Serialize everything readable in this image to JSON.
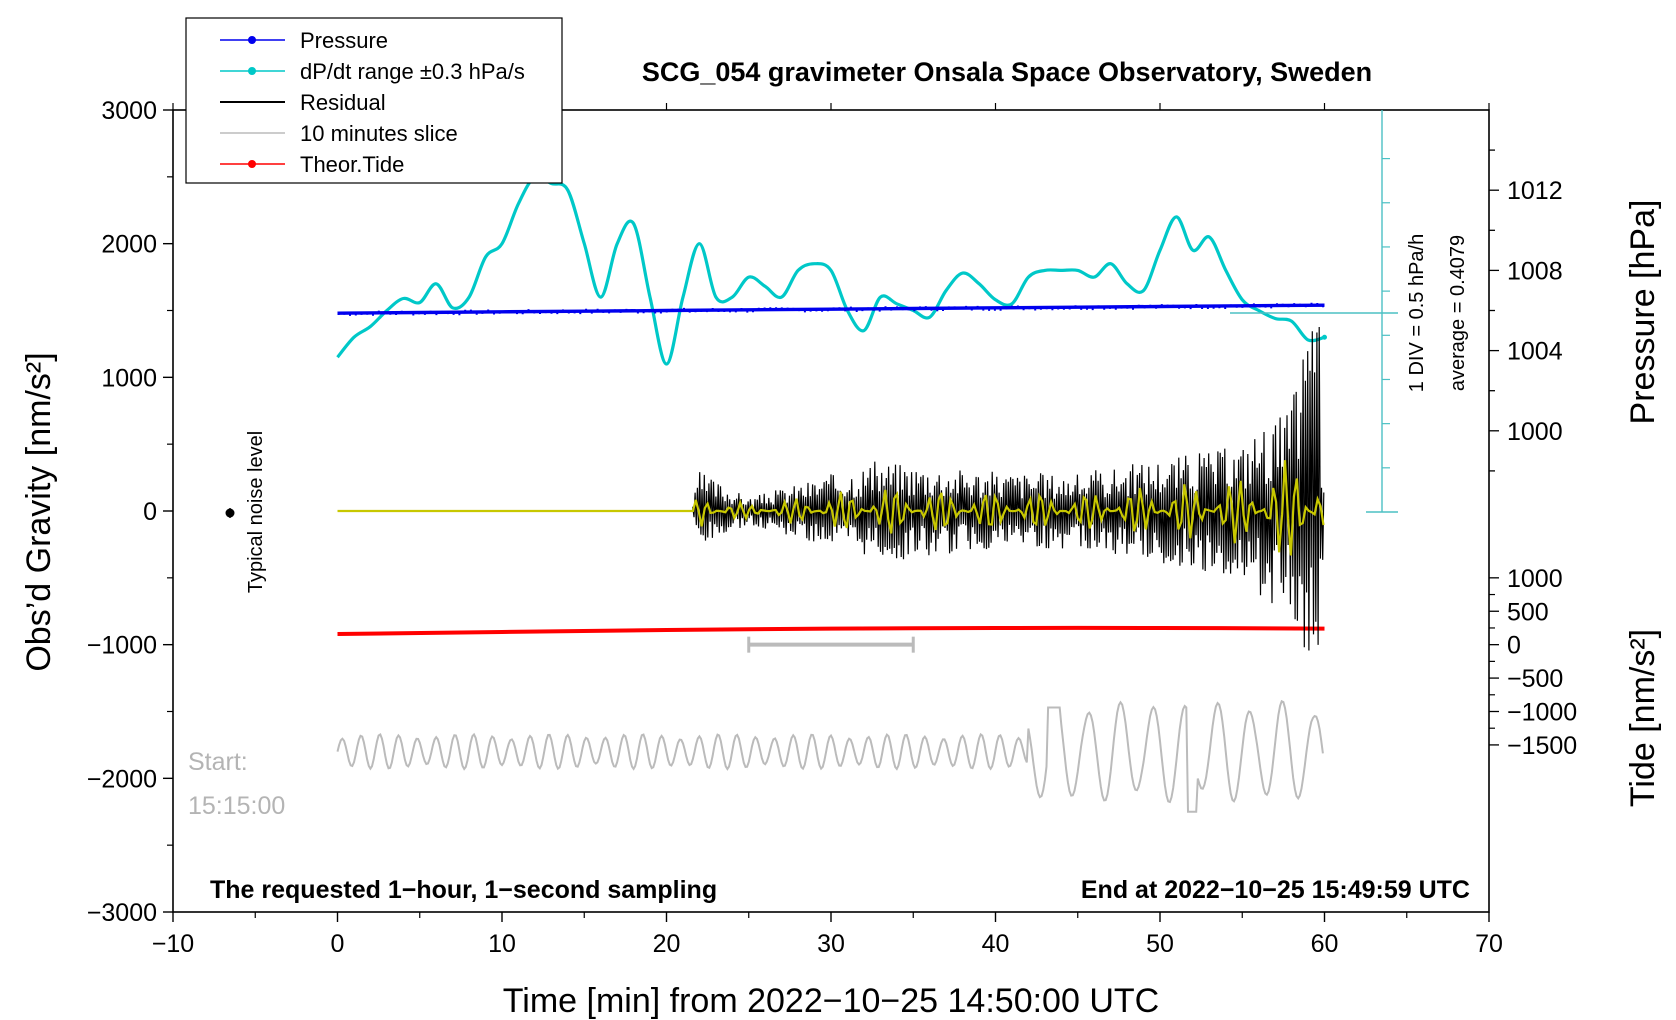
{
  "chart_data": {
    "type": "line",
    "title": "SCG_054 gravimeter Onsala Space Observatory, Sweden",
    "xlabel": "Time [min] from 2022−10−25 14:50:00 UTC",
    "ylabel_left": "Obs’d Gravity [nm/s²]",
    "ylabel_right_pressure": "Pressure [hPa]",
    "ylabel_right_tide": "Tide [nm/s²]",
    "xlim": [
      -10,
      70
    ],
    "ylim": [
      -3000,
      3000
    ],
    "x_ticks": [
      "−10",
      "0",
      "10",
      "20",
      "30",
      "40",
      "50",
      "60",
      "70"
    ],
    "x_tick_values": [
      -10,
      0,
      10,
      20,
      30,
      40,
      50,
      60,
      70
    ],
    "y_ticks": [
      "3000",
      "2000",
      "1000",
      "0",
      "−1000",
      "−2000",
      "−3000"
    ],
    "y_tick_values": [
      3000,
      2000,
      1000,
      0,
      -1000,
      -2000,
      -3000
    ],
    "pressure_axis": {
      "ticks": [
        "1012",
        "1008",
        "1004",
        "1000"
      ],
      "tick_values": [
        1012,
        1008,
        1004,
        1000
      ],
      "gravity_at_1012": 2400,
      "gravity_per_hPa": 150
    },
    "tide_axis": {
      "ticks": [
        "1000",
        "500",
        "0",
        "−500",
        "−1000",
        "−1500"
      ],
      "tick_values": [
        1000,
        500,
        0,
        -500,
        -1000,
        -1500
      ],
      "gravity_at_1000": -500,
      "gravity_per_unit": 0.5
    },
    "legend": [
      {
        "label": "Pressure",
        "color": "#0000ee",
        "marker": true
      },
      {
        "label": "dP/dt range ±0.3 hPa/s",
        "color": "#00c8c8",
        "marker": true
      },
      {
        "label": "Residual",
        "color": "#000000",
        "marker": false
      },
      {
        "label": "10 minutes slice",
        "color": "#bbbbbb",
        "marker": false
      },
      {
        "label": "Theor.Tide",
        "color": "#ff0000",
        "marker": true
      }
    ],
    "annotations": {
      "div_label": "1 DIV = 0.5 hPa/h",
      "average_label": "average = 0.4079",
      "noise_label": "Typical noise level",
      "start_label": "Start:",
      "start_time": "15:15:00",
      "bottom_left": "The requested 1−hour, 1−second sampling",
      "bottom_right": "End at 2022−10−25 15:49:59 UTC"
    },
    "slice_range_min": [
      25,
      35
    ],
    "series": [
      {
        "name": "Pressure",
        "color": "#0000ee",
        "axis": "gravity",
        "x": [
          0,
          5,
          10,
          15,
          20,
          25,
          30,
          35,
          40,
          45,
          50,
          55,
          60
        ],
        "values": [
          1480,
          1485,
          1490,
          1495,
          1500,
          1505,
          1510,
          1515,
          1520,
          1525,
          1530,
          1535,
          1540
        ]
      },
      {
        "name": "dP/dt",
        "color": "#00c8c8",
        "axis": "gravity",
        "x": [
          0,
          1,
          2,
          3,
          4,
          5,
          6,
          7,
          8,
          9,
          10,
          11,
          12,
          13,
          14,
          15,
          16,
          17,
          18,
          19,
          20,
          21,
          22,
          23,
          24,
          25,
          26,
          27,
          28,
          29,
          30,
          31,
          32,
          33,
          34,
          35,
          36,
          37,
          38,
          39,
          40,
          41,
          42,
          43,
          44,
          45,
          46,
          47,
          48,
          49,
          50,
          51,
          52,
          53,
          54,
          55,
          56,
          57,
          58,
          59,
          60
        ],
        "values": [
          1150,
          1300,
          1380,
          1500,
          1590,
          1560,
          1700,
          1520,
          1600,
          1900,
          2000,
          2300,
          2500,
          2450,
          2400,
          2000,
          1600,
          2000,
          2150,
          1600,
          1100,
          1600,
          2000,
          1600,
          1600,
          1750,
          1680,
          1600,
          1800,
          1850,
          1800,
          1500,
          1350,
          1600,
          1550,
          1500,
          1450,
          1650,
          1780,
          1700,
          1580,
          1550,
          1750,
          1800,
          1800,
          1800,
          1750,
          1850,
          1700,
          1650,
          1950,
          2200,
          1950,
          2050,
          1800,
          1580,
          1500,
          1440,
          1420,
          1280,
          1300
        ]
      },
      {
        "name": "Theor.Tide",
        "color": "#ff0000",
        "axis": "gravity",
        "x": [
          0,
          10,
          20,
          30,
          40,
          50,
          60
        ],
        "values": [
          -920,
          -905,
          -890,
          -880,
          -875,
          -875,
          -880
        ]
      },
      {
        "name": "Residual",
        "color": "#000000",
        "axis": "gravity",
        "x": [
          0,
          21.5,
          22,
          25,
          32,
          33,
          40,
          45,
          50,
          55,
          56,
          57,
          58,
          59,
          60
        ],
        "values": [
          0,
          0,
          300,
          100,
          350,
          380,
          300,
          280,
          400,
          500,
          650,
          700,
          800,
          1520,
          280
        ],
        "note": "values are approximate oscillation envelope (peak amplitude); max negative -1270 near 59.5 min"
      },
      {
        "name": "10 minutes slice",
        "color": "#bbbbbb",
        "axis": "gravity",
        "x": [
          0,
          42,
          43.5,
          44.5,
          50,
          52,
          53,
          56,
          60
        ],
        "values": [
          -1800,
          -1800,
          -1470,
          -2130,
          -1900,
          -2250,
          -1700,
          -1700,
          -1800
        ]
      }
    ]
  }
}
